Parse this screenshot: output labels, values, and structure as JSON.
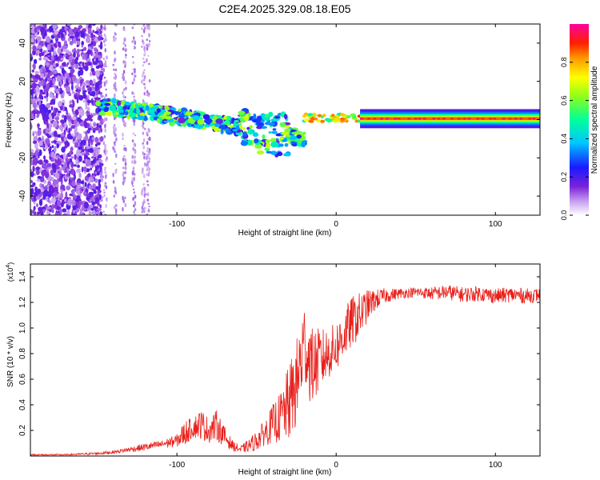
{
  "title": "C2E4.2025.329.08.18.E05",
  "chart_data": [
    {
      "type": "heatmap",
      "xlabel": "Height of straight line (km)",
      "ylabel": "Frequency (Hz)",
      "xlim": [
        -192,
        128
      ],
      "ylim": [
        -50,
        50
      ],
      "x_ticks": [
        -100,
        0,
        100
      ],
      "y_ticks": [
        -40,
        -20,
        0,
        20,
        40
      ],
      "colorbar": {
        "label": "Normalized spectral amplitude",
        "range": [
          0,
          1
        ],
        "ticks": [
          0.0,
          0.2,
          0.4,
          0.6,
          0.8
        ]
      },
      "features": [
        {
          "name": "broadband noise region",
          "x_range": [
            -192,
            -147
          ],
          "y_range": [
            -50,
            50
          ]
        },
        {
          "name": "faint noise stripes",
          "x_range": [
            -145,
            -117
          ],
          "y_range": [
            -50,
            50
          ]
        },
        {
          "name": "signal drifting",
          "x_range": [
            -150,
            -20
          ],
          "y_start": 7,
          "y_end": -10
        },
        {
          "name": "steady line near 0 Hz",
          "x_range": [
            15,
            128
          ],
          "y": 0.5
        }
      ]
    },
    {
      "type": "line",
      "xlabel": "Height of straight line (km)",
      "ylabel": "SNR (10 * v/v)",
      "y_multiplier": "(x10",
      "y_multiplier_exp": "4",
      "y_multiplier_close": ")",
      "xlim": [
        -192,
        128
      ],
      "ylim": [
        0,
        1.5
      ],
      "x_ticks": [
        -100,
        0,
        100
      ],
      "y_ticks": [
        0.2,
        0.4,
        0.6,
        0.8,
        1.0,
        1.2,
        1.4
      ],
      "series": [
        {
          "name": "SNR",
          "color": "#e8201a",
          "x": [
            -192,
            -170,
            -150,
            -140,
            -130,
            -120,
            -110,
            -100,
            -95,
            -90,
            -85,
            -80,
            -75,
            -70,
            -65,
            -60,
            -55,
            -50,
            -45,
            -40,
            -35,
            -30,
            -25,
            -22,
            -20,
            -18,
            -15,
            -10,
            -5,
            0,
            5,
            10,
            15,
            20,
            25,
            30,
            40,
            50,
            60,
            70,
            80,
            90,
            100,
            110,
            120,
            128
          ],
          "values": [
            0.01,
            0.01,
            0.02,
            0.03,
            0.05,
            0.07,
            0.09,
            0.12,
            0.18,
            0.22,
            0.25,
            0.2,
            0.24,
            0.15,
            0.08,
            0.05,
            0.08,
            0.12,
            0.18,
            0.25,
            0.3,
            0.4,
            0.55,
            0.75,
            0.9,
            0.8,
            0.7,
            0.75,
            0.8,
            0.85,
            0.95,
            1.05,
            1.1,
            1.18,
            1.22,
            1.25,
            1.27,
            1.28,
            1.27,
            1.28,
            1.26,
            1.27,
            1.25,
            1.26,
            1.25,
            1.26
          ],
          "noise_amplitude": [
            0.005,
            0.005,
            0.01,
            0.012,
            0.02,
            0.03,
            0.03,
            0.05,
            0.1,
            0.08,
            0.12,
            0.1,
            0.12,
            0.08,
            0.04,
            0.03,
            0.05,
            0.08,
            0.1,
            0.15,
            0.2,
            0.3,
            0.35,
            0.4,
            0.3,
            0.35,
            0.3,
            0.25,
            0.2,
            0.2,
            0.2,
            0.2,
            0.18,
            0.12,
            0.08,
            0.06,
            0.04,
            0.04,
            0.05,
            0.06,
            0.06,
            0.06,
            0.06,
            0.06,
            0.06,
            0.05
          ]
        }
      ]
    }
  ]
}
